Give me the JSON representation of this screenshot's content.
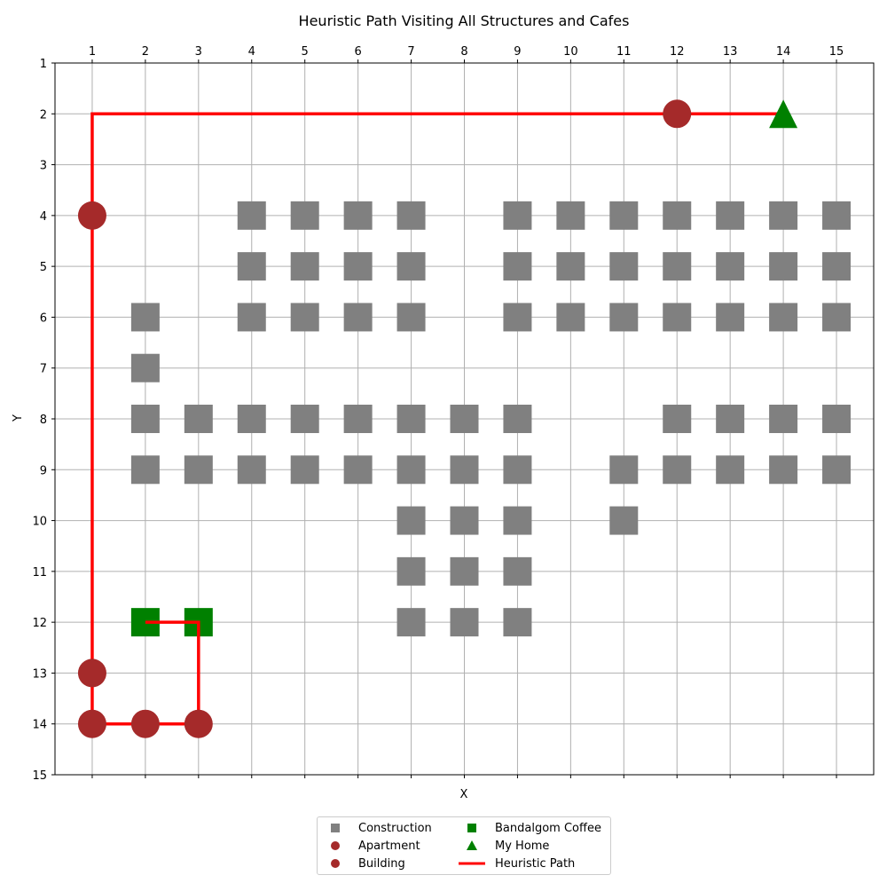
{
  "chart_data": {
    "type": "scatter",
    "title": "Heuristic Path Visiting All Structures and Cafes",
    "xlabel": "X",
    "ylabel": "Y",
    "xlim": [
      0.3,
      15.7
    ],
    "ylim": [
      15,
      1
    ],
    "x_ticks": [
      "1",
      "2",
      "3",
      "4",
      "5",
      "6",
      "7",
      "8",
      "9",
      "10",
      "11",
      "12",
      "13",
      "14",
      "15"
    ],
    "y_ticks": [
      "1",
      "2",
      "3",
      "4",
      "5",
      "6",
      "7",
      "8",
      "9",
      "10",
      "11",
      "12",
      "13",
      "14",
      "15"
    ],
    "x_axis_position": "top",
    "y_inverted": true,
    "grid": true,
    "legend_position": "bottom-center",
    "colors": {
      "construction": "#808080",
      "apartment": "#a52a2a",
      "building": "#a52a2a",
      "cafe": "#008000",
      "home": "#008000",
      "path": "#ff0000",
      "grid": "#b0b0b0"
    },
    "series": [
      {
        "name": "Construction",
        "marker": "square",
        "points": [
          [
            4,
            4
          ],
          [
            5,
            4
          ],
          [
            6,
            4
          ],
          [
            7,
            4
          ],
          [
            9,
            4
          ],
          [
            10,
            4
          ],
          [
            11,
            4
          ],
          [
            12,
            4
          ],
          [
            13,
            4
          ],
          [
            14,
            4
          ],
          [
            15,
            4
          ],
          [
            4,
            5
          ],
          [
            5,
            5
          ],
          [
            6,
            5
          ],
          [
            7,
            5
          ],
          [
            9,
            5
          ],
          [
            10,
            5
          ],
          [
            11,
            5
          ],
          [
            12,
            5
          ],
          [
            13,
            5
          ],
          [
            14,
            5
          ],
          [
            15,
            5
          ],
          [
            2,
            6
          ],
          [
            4,
            6
          ],
          [
            5,
            6
          ],
          [
            6,
            6
          ],
          [
            7,
            6
          ],
          [
            9,
            6
          ],
          [
            10,
            6
          ],
          [
            11,
            6
          ],
          [
            12,
            6
          ],
          [
            13,
            6
          ],
          [
            14,
            6
          ],
          [
            15,
            6
          ],
          [
            2,
            7
          ],
          [
            2,
            8
          ],
          [
            3,
            8
          ],
          [
            4,
            8
          ],
          [
            5,
            8
          ],
          [
            6,
            8
          ],
          [
            7,
            8
          ],
          [
            8,
            8
          ],
          [
            9,
            8
          ],
          [
            12,
            8
          ],
          [
            13,
            8
          ],
          [
            14,
            8
          ],
          [
            15,
            8
          ],
          [
            2,
            9
          ],
          [
            3,
            9
          ],
          [
            4,
            9
          ],
          [
            5,
            9
          ],
          [
            6,
            9
          ],
          [
            7,
            9
          ],
          [
            8,
            9
          ],
          [
            9,
            9
          ],
          [
            11,
            9
          ],
          [
            12,
            9
          ],
          [
            13,
            9
          ],
          [
            14,
            9
          ],
          [
            15,
            9
          ],
          [
            7,
            10
          ],
          [
            8,
            10
          ],
          [
            9,
            10
          ],
          [
            11,
            10
          ],
          [
            7,
            11
          ],
          [
            8,
            11
          ],
          [
            9,
            11
          ],
          [
            7,
            12
          ],
          [
            8,
            12
          ],
          [
            9,
            12
          ]
        ]
      },
      {
        "name": "Apartment",
        "marker": "circle",
        "points": [
          [
            12,
            2
          ],
          [
            1,
            4
          ],
          [
            1,
            13
          ]
        ]
      },
      {
        "name": "Building",
        "marker": "circle",
        "points": [
          [
            1,
            14
          ],
          [
            2,
            14
          ],
          [
            3,
            14
          ]
        ]
      },
      {
        "name": "Bandalgom Coffee",
        "marker": "square",
        "points": [
          [
            2,
            12
          ],
          [
            3,
            12
          ]
        ]
      },
      {
        "name": "My Home",
        "marker": "triangle",
        "points": [
          [
            14,
            2
          ]
        ]
      },
      {
        "name": "Heuristic Path",
        "marker": "line",
        "points": [
          [
            14,
            2
          ],
          [
            12,
            2
          ],
          [
            1,
            2
          ],
          [
            1,
            4
          ],
          [
            1,
            13
          ],
          [
            1,
            14
          ],
          [
            2,
            14
          ],
          [
            3,
            14
          ],
          [
            3,
            12
          ],
          [
            2,
            12
          ]
        ]
      }
    ]
  }
}
